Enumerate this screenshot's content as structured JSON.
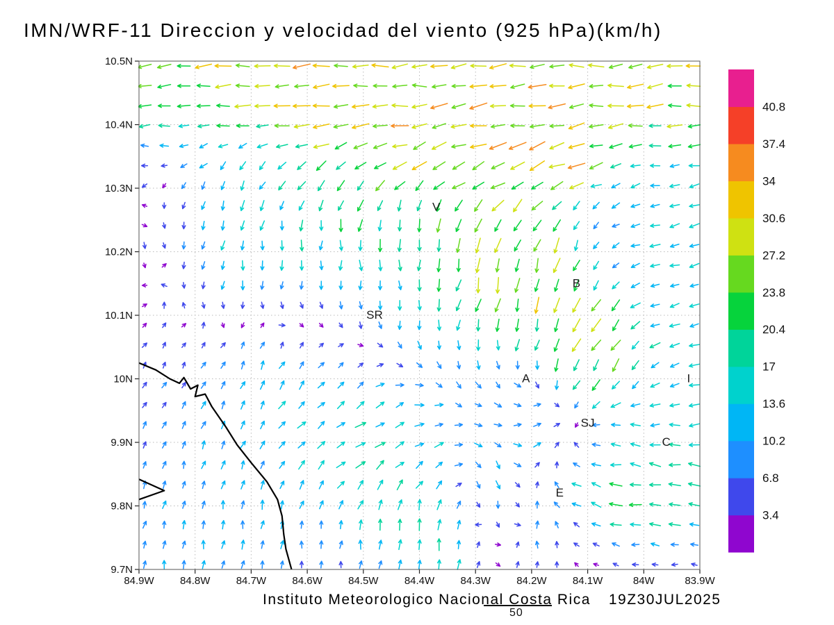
{
  "title": "IMN/WRF-11 Direccion y velocidad del viento (925 hPa)(km/h)",
  "footer": {
    "attribution": "Instituto Meteorologico Nacional Costa Rica",
    "timestamp": "19Z30JUL2025",
    "stray_value": "50"
  },
  "chart_data": {
    "type": "quiver",
    "title": "IMN/WRF-11 Direccion y velocidad del viento (925 hPa)(km/h)",
    "model": "IMN/WRF-11",
    "variable": "Direccion y velocidad del viento",
    "level": "925 hPa",
    "units": "km/h",
    "grid": true,
    "legend_position": "right",
    "x_axis": {
      "min": 83.9,
      "max": 84.9,
      "values": [
        84.9,
        84.8,
        84.7,
        84.6,
        84.5,
        84.4,
        84.3,
        84.2,
        84.1,
        84.0,
        83.9
      ],
      "ticks": [
        "84.9W",
        "84.8W",
        "84.7W",
        "84.6W",
        "84.5W",
        "84.4W",
        "84.3W",
        "84.2W",
        "84.1W",
        "84W",
        "83.9W"
      ]
    },
    "y_axis": {
      "min": 9.7,
      "max": 10.5,
      "values": [
        10.5,
        10.4,
        10.3,
        10.2,
        10.1,
        10.0,
        9.9,
        9.8,
        9.7
      ],
      "ticks": [
        "10.5N",
        "10.4N",
        "10.3N",
        "10.2N",
        "10.1N",
        "10N",
        "9.9N",
        "9.8N",
        "9.7N"
      ]
    },
    "colorbar": {
      "levels": [
        3.4,
        6.8,
        10.2,
        13.6,
        17,
        20.4,
        23.8,
        27.2,
        30.6,
        34,
        37.4,
        40.8
      ],
      "labels": [
        "40.8",
        "37.4",
        "34",
        "30.6",
        "27.2",
        "23.8",
        "20.4",
        "17",
        "13.6",
        "10.2",
        "6.8",
        "3.4"
      ],
      "colors": [
        "#8f06cf",
        "#3f48ec",
        "#1e8fff",
        "#00b6f5",
        "#00d2cd",
        "#00d49a",
        "#06d33c",
        "#66d91f",
        "#cfe112",
        "#efc400",
        "#f68b1f",
        "#f54028",
        "#e81f8f"
      ]
    },
    "stations": [
      {
        "label": "V",
        "lon": 84.37,
        "lat": 10.27
      },
      {
        "label": "B",
        "lon": 84.12,
        "lat": 10.15
      },
      {
        "label": "SR",
        "lon": 84.48,
        "lat": 10.1
      },
      {
        "label": "A",
        "lon": 84.21,
        "lat": 10.0
      },
      {
        "label": "I",
        "lon": 83.92,
        "lat": 10.0
      },
      {
        "label": "SJ",
        "lon": 84.1,
        "lat": 9.93
      },
      {
        "label": "C",
        "lon": 83.96,
        "lat": 9.9
      },
      {
        "label": "E",
        "lon": 84.15,
        "lat": 9.82
      }
    ],
    "coastline": [
      [
        84.9,
        10.025
      ],
      [
        84.87,
        10.014
      ],
      [
        84.845,
        10.0
      ],
      [
        84.828,
        9.993
      ],
      [
        84.82,
        10.002
      ],
      [
        84.808,
        9.984
      ],
      [
        84.795,
        9.99
      ],
      [
        84.8,
        9.972
      ],
      [
        84.782,
        9.976
      ],
      [
        84.77,
        9.956
      ],
      [
        84.745,
        9.924
      ],
      [
        84.725,
        9.896
      ],
      [
        84.7,
        9.868
      ],
      [
        84.672,
        9.838
      ],
      [
        84.653,
        9.81
      ],
      [
        84.645,
        9.784
      ],
      [
        84.642,
        9.756
      ],
      [
        84.638,
        9.732
      ],
      [
        84.628,
        9.7
      ]
    ],
    "coastline_spike": [
      [
        84.9,
        9.842
      ],
      [
        84.855,
        9.824
      ],
      [
        84.9,
        9.81
      ]
    ],
    "flow_field": {
      "grid_cols": 29,
      "grid_rows": 26,
      "regimes": [
        {
          "cx": 0.5,
          "cy": 0.0,
          "sx": 1.2,
          "sy": 0.15,
          "dx": -1.0,
          "dy": 0.05,
          "speed": 30
        },
        {
          "cx": 0.58,
          "cy": 0.2,
          "sx": 0.22,
          "sy": 0.09,
          "dx": -1.0,
          "dy": 0.3,
          "speed": 35
        },
        {
          "cx": 0.02,
          "cy": 0.55,
          "sx": 0.09,
          "sy": 0.38,
          "dx": 0.6,
          "dy": -0.8,
          "speed": 5
        },
        {
          "cx": 0.12,
          "cy": 0.88,
          "sx": 0.2,
          "sy": 0.2,
          "dx": 0.12,
          "dy": -1.0,
          "speed": 11
        },
        {
          "cx": 0.18,
          "cy": 0.35,
          "sx": 0.15,
          "sy": 0.15,
          "dx": -0.2,
          "dy": 1.0,
          "speed": 15
        },
        {
          "cx": 0.4,
          "cy": 0.43,
          "sx": 0.16,
          "sy": 0.17,
          "dx": 0.05,
          "dy": 1.0,
          "speed": 14
        },
        {
          "cx": 0.46,
          "cy": 0.3,
          "sx": 0.13,
          "sy": 0.09,
          "dx": -0.1,
          "dy": 1.0,
          "speed": 24
        },
        {
          "cx": 0.66,
          "cy": 0.4,
          "sx": 0.13,
          "sy": 0.15,
          "dx": -0.3,
          "dy": 1.0,
          "speed": 28
        },
        {
          "cx": 0.58,
          "cy": 0.63,
          "sx": 0.09,
          "sy": 0.13,
          "dx": 0.02,
          "dy": 1.0,
          "speed": 13
        },
        {
          "cx": 0.5,
          "cy": 0.72,
          "sx": 0.26,
          "sy": 0.11,
          "dx": 0.9,
          "dy": -0.5,
          "speed": 20
        },
        {
          "cx": 0.82,
          "cy": 0.58,
          "sx": 0.08,
          "sy": 0.1,
          "dx": -0.55,
          "dy": 1.0,
          "speed": 30
        },
        {
          "cx": 0.97,
          "cy": 0.5,
          "sx": 0.12,
          "sy": 0.3,
          "dx": -1.0,
          "dy": 0.2,
          "speed": 14
        },
        {
          "cx": 0.9,
          "cy": 0.82,
          "sx": 0.13,
          "sy": 0.12,
          "dx": -0.95,
          "dy": -0.15,
          "speed": 22
        },
        {
          "cx": 0.28,
          "cy": 0.6,
          "sx": 0.14,
          "sy": 0.12,
          "dx": 0.3,
          "dy": -0.9,
          "speed": 14
        },
        {
          "cx": 0.55,
          "cy": 0.92,
          "sx": 0.16,
          "sy": 0.1,
          "dx": 0.1,
          "dy": -1.0,
          "speed": 18
        },
        {
          "cx": 0.63,
          "cy": 0.85,
          "sx": 0.05,
          "sy": 0.12,
          "dx": 0.0,
          "dy": 1.0,
          "speed": 26
        }
      ]
    }
  }
}
